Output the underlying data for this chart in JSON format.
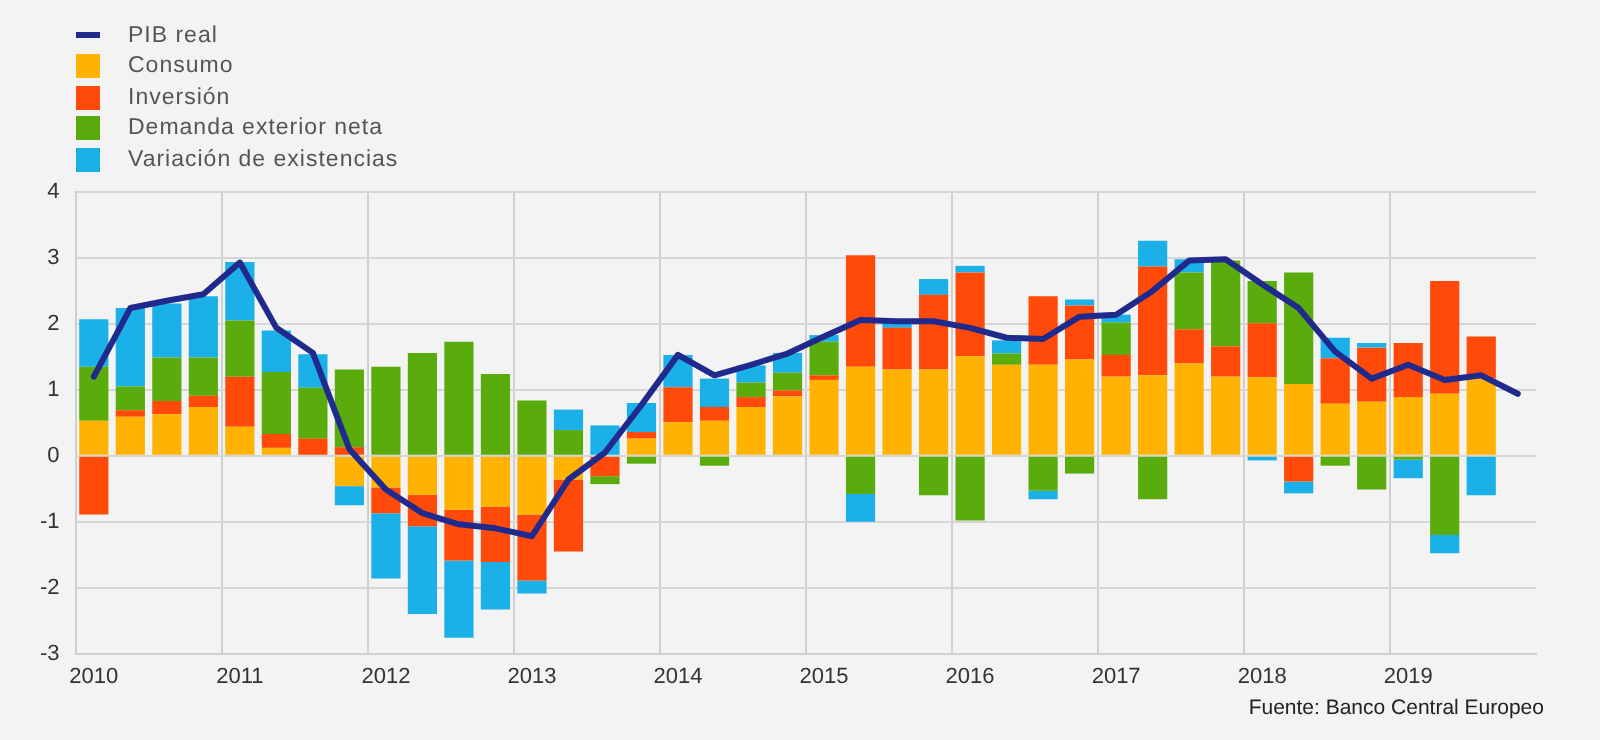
{
  "chart_data": {
    "type": "bar",
    "stacked": true,
    "categories": [
      "2010",
      null,
      null,
      null,
      "2011",
      null,
      null,
      null,
      "2012",
      null,
      null,
      null,
      "2013",
      null,
      null,
      null,
      "2014",
      null,
      null,
      null,
      "2015",
      null,
      null,
      null,
      "2016",
      null,
      null,
      null,
      "2017",
      null,
      null,
      null,
      "2018",
      null,
      null,
      null,
      "2019",
      null,
      null,
      null
    ],
    "series": [
      {
        "name": "PIB real",
        "type": "line",
        "color": "#1f2a8c",
        "values": [
          1.2,
          2.24,
          2.35,
          2.45,
          2.93,
          1.94,
          1.56,
          0.1,
          -0.51,
          -0.87,
          -1.04,
          -1.1,
          -1.22,
          -0.36,
          0.05,
          0.77,
          1.53,
          1.22,
          1.38,
          1.55,
          1.81,
          2.06,
          2.04,
          2.04,
          1.94,
          1.79,
          1.77,
          2.11,
          2.14,
          2.5,
          2.96,
          2.98,
          2.6,
          2.24,
          1.58,
          1.17,
          1.38,
          1.15,
          1.22,
          0.94
        ]
      },
      {
        "name": "Consumo",
        "color": "#ffb300",
        "values": [
          0.53,
          0.59,
          0.63,
          0.74,
          0.44,
          0.12,
          null,
          -0.46,
          -0.48,
          -0.59,
          -0.82,
          -0.77,
          -0.89,
          -0.36,
          null,
          0.26,
          0.51,
          0.53,
          0.74,
          0.9,
          1.15,
          1.35,
          1.31,
          1.31,
          1.51,
          1.38,
          1.38,
          1.46,
          1.2,
          1.22,
          1.4,
          1.2,
          1.19,
          1.09,
          0.79,
          0.82,
          0.89,
          0.94,
          1.17,
          null
        ]
      },
      {
        "name": "Inversión",
        "color": "#ff4a0a",
        "values": [
          -0.89,
          0.1,
          0.2,
          0.17,
          0.76,
          0.21,
          0.26,
          0.13,
          -0.39,
          -0.48,
          -0.77,
          -0.84,
          -1.0,
          -1.09,
          -0.31,
          0.1,
          0.53,
          0.21,
          0.15,
          0.09,
          0.07,
          1.69,
          0.63,
          1.13,
          1.27,
          null,
          1.04,
          0.82,
          0.33,
          1.65,
          0.52,
          0.46,
          0.82,
          -0.39,
          0.69,
          0.82,
          0.82,
          1.71,
          0.64,
          null
        ]
      },
      {
        "name": "Demanda exterior neta",
        "color": "#5aab0c",
        "values": [
          0.82,
          0.36,
          0.66,
          0.58,
          0.85,
          0.94,
          0.77,
          1.18,
          1.35,
          1.56,
          1.73,
          1.24,
          0.84,
          0.39,
          -0.12,
          -0.12,
          null,
          -0.15,
          0.22,
          0.27,
          0.51,
          -0.58,
          null,
          -0.6,
          -0.98,
          0.17,
          -0.53,
          -0.27,
          0.49,
          -0.66,
          0.86,
          1.3,
          0.64,
          1.69,
          -0.15,
          -0.51,
          -0.06,
          -1.2,
          null,
          null
        ]
      },
      {
        "name": "Variación de existencias",
        "color": "#1cb0e8",
        "values": [
          0.72,
          1.19,
          0.82,
          0.93,
          0.89,
          0.63,
          0.51,
          -0.29,
          -0.99,
          -1.33,
          -1.17,
          -0.72,
          -0.2,
          0.31,
          0.46,
          0.44,
          0.49,
          0.43,
          0.26,
          0.3,
          0.1,
          -0.42,
          0.12,
          0.24,
          0.1,
          0.2,
          -0.13,
          0.09,
          0.12,
          0.39,
          0.2,
          null,
          -0.07,
          -0.18,
          0.31,
          0.07,
          -0.28,
          -0.28,
          -0.6,
          null
        ]
      }
    ],
    "ylim": [
      -3,
      4
    ],
    "yticks": [
      -3,
      -2,
      -1,
      0,
      1,
      2,
      3,
      4
    ],
    "grid": true,
    "legend": "top left",
    "marker": "none",
    "annotations": [
      "Fuente: Banco Central Europeo"
    ]
  }
}
